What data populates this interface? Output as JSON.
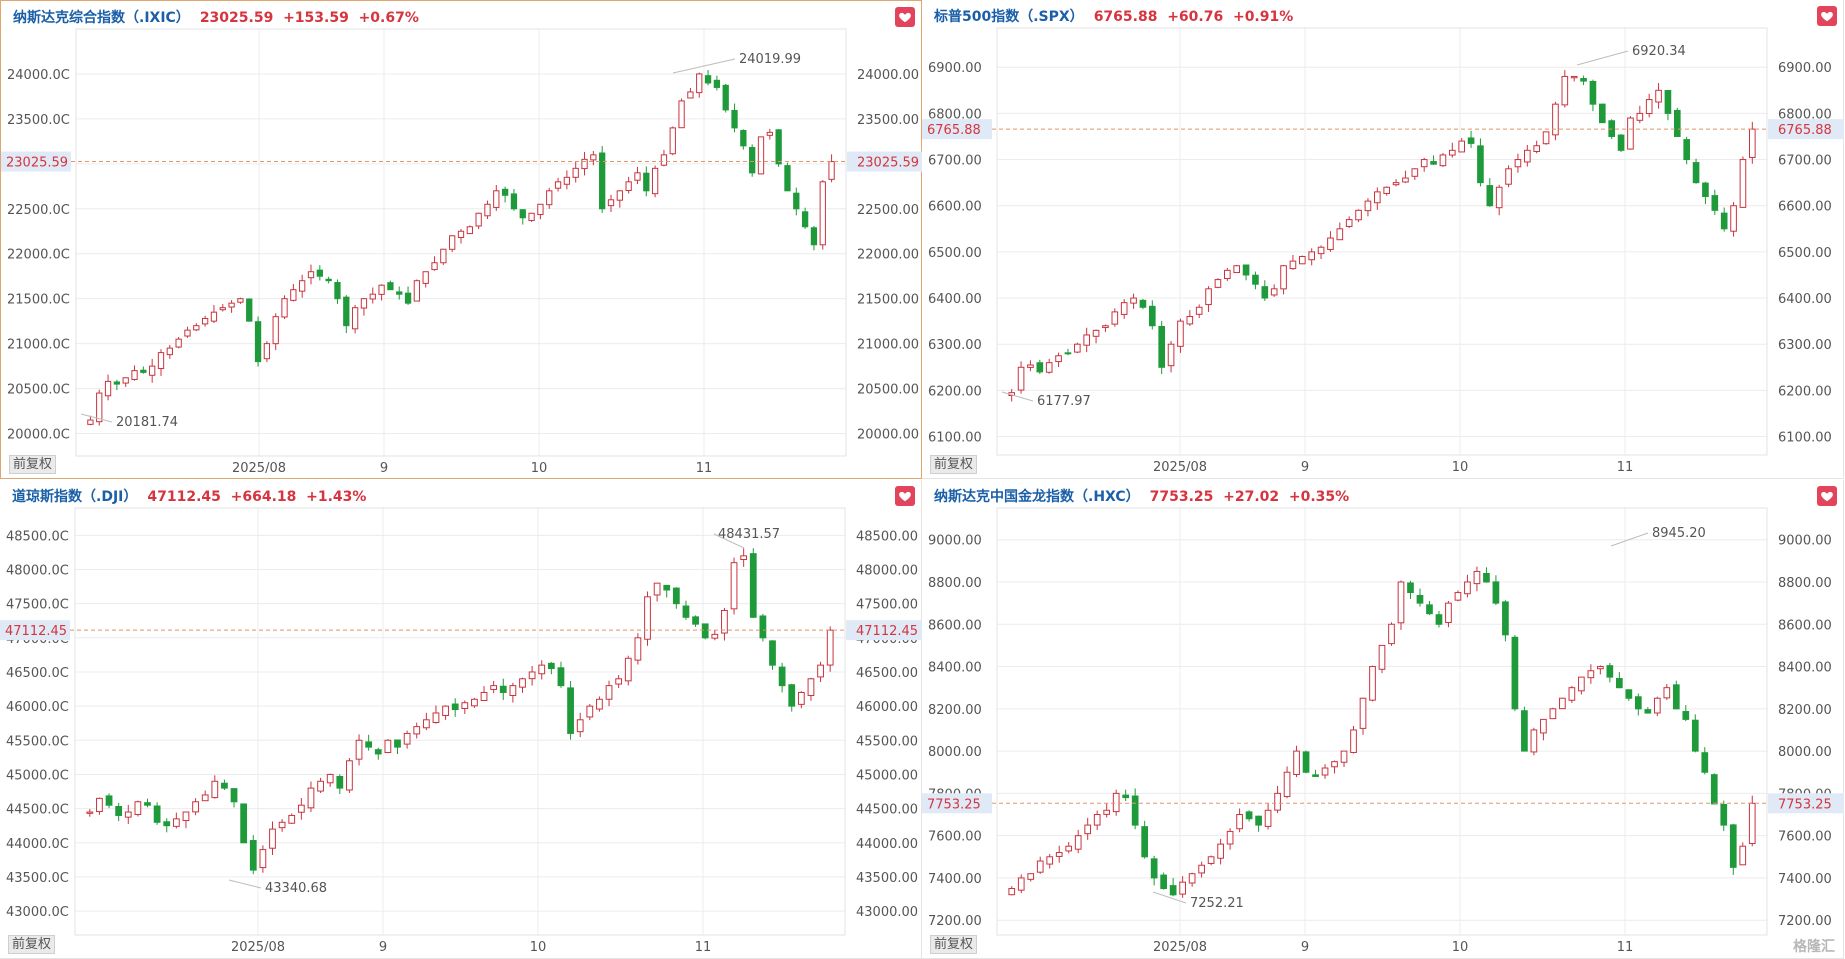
{
  "footer_label": "前复权",
  "watermark": "格隆汇",
  "chart_data": [
    {
      "type": "candlestick",
      "title": "纳斯达克综合指数（.IXIC）",
      "quote": "23025.59  +153.59  +0.67%",
      "x_ticks": [
        "2025/08",
        "9",
        "10",
        "11"
      ],
      "ylim": [
        19750,
        24500
      ],
      "y_ticks": [
        20000,
        20500,
        21000,
        21500,
        22000,
        22500,
        23000,
        23500,
        24000
      ],
      "y_tick_labels": [
        "20000.0C",
        "20500.0C",
        "21000.0C",
        "21500.0C",
        "22000.0C",
        "22500.0C",
        "23000.0C",
        "23500.0C",
        "24000.0C"
      ],
      "y_tick_labels_right": [
        "20000.00",
        "20500.00",
        "21000.00",
        "21500.00",
        "22000.00",
        "22500.00",
        "23000.00",
        "23500.00",
        "24000.00"
      ],
      "current": 23025.59,
      "current_label": "23025.59",
      "high_label": "24019.99",
      "low_label": "20181.74",
      "high": 24019.99,
      "low": 20181.74
    },
    {
      "type": "candlestick",
      "title": "标普500指数（.SPX）",
      "quote": "6765.88  +60.76  +0.91%",
      "x_ticks": [
        "2025/08",
        "9",
        "10",
        "11"
      ],
      "ylim": [
        6060,
        6985
      ],
      "y_ticks": [
        6100,
        6200,
        6300,
        6400,
        6500,
        6600,
        6700,
        6800,
        6900
      ],
      "y_tick_labels": [
        "6100.00",
        "6200.00",
        "6300.00",
        "6400.00",
        "6500.00",
        "6600.00",
        "6700.00",
        "6800.00",
        "6900.00"
      ],
      "y_tick_labels_right": [
        "6100.00",
        "6200.00",
        "6300.00",
        "6400.00",
        "6500.00",
        "6600.00",
        "6700.00",
        "6800.00",
        "6900.00"
      ],
      "current": 6765.88,
      "current_label": "6765.88",
      "high_label": "6920.34",
      "low_label": "6177.97",
      "high": 6920.34,
      "low": 6177.97
    },
    {
      "type": "candlestick",
      "title": "道琼斯指数（.DJI）",
      "quote": "47112.45  +664.18  +1.43%",
      "x_ticks": [
        "2025/08",
        "9",
        "10",
        "11"
      ],
      "ylim": [
        42650,
        48900
      ],
      "y_ticks": [
        43000,
        43500,
        44000,
        44500,
        45000,
        45500,
        46000,
        46500,
        47000,
        47500,
        48000,
        48500
      ],
      "y_tick_labels": [
        "43000.0C",
        "43500.0C",
        "44000.0C",
        "44500.0C",
        "45000.0C",
        "45500.0C",
        "46000.0C",
        "46500.0C",
        "47000.0C",
        "47500.0C",
        "48000.0C",
        "48500.0C"
      ],
      "y_tick_labels_right": [
        "43000.00",
        "43500.00",
        "44000.00",
        "44500.00",
        "45000.00",
        "45500.00",
        "46000.00",
        "46500.00",
        "47000.00",
        "47500.00",
        "48000.00",
        "48500.00"
      ],
      "current": 47112.45,
      "current_label": "47112.45",
      "high_label": "48431.57",
      "low_label": "43340.68",
      "high": 48431.57,
      "low": 43340.68
    },
    {
      "type": "candlestick",
      "title": "纳斯达克中国金龙指数（.HXC）",
      "quote": "7753.25  +27.02  +0.35%",
      "x_ticks": [
        "2025/08",
        "9",
        "10",
        "11"
      ],
      "ylim": [
        7130,
        9150
      ],
      "y_ticks": [
        7200,
        7400,
        7600,
        7800,
        8000,
        8200,
        8400,
        8600,
        8800,
        9000
      ],
      "y_tick_labels": [
        "7200.00",
        "7400.00",
        "7600.00",
        "7800.00",
        "8000.00",
        "8200.00",
        "8400.00",
        "8600.00",
        "8800.00",
        "9000.00"
      ],
      "y_tick_labels_right": [
        "7200.00",
        "7400.00",
        "7600.00",
        "7800.00",
        "8000.00",
        "8200.00",
        "8400.00",
        "8600.00",
        "8800.00",
        "9000.00"
      ],
      "current": 7753.25,
      "current_label": "7753.25",
      "high_label": "8945.20",
      "low_label": "7252.21",
      "high": 8945.2,
      "low": 7252.21
    }
  ],
  "colors": {
    "up": "#c9343f",
    "down": "#1e9a3b",
    "current_line": "#e0956a",
    "title": "#1a5fa8",
    "quote": "#d6343f"
  }
}
